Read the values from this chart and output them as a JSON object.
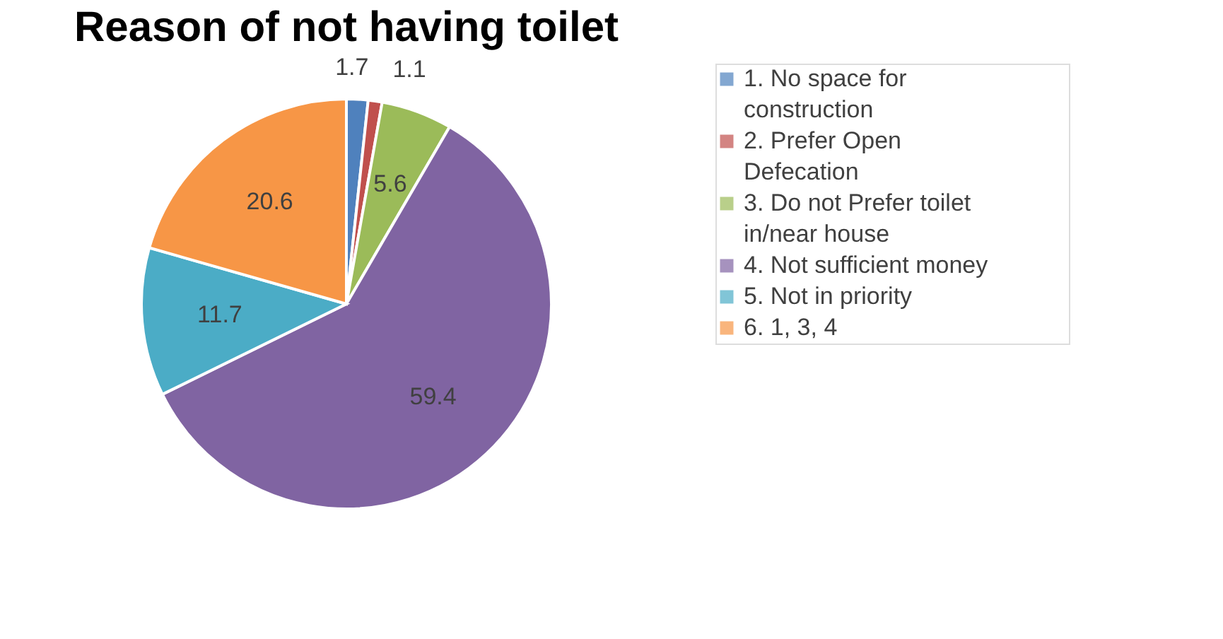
{
  "chart_data": {
    "type": "pie",
    "title": "Reason of not having toilet",
    "categories": [
      "1. No space for construction",
      "2. Prefer Open Defecation",
      "3. Do not Prefer toilet in/near house",
      "4. Not sufficient money",
      "5. Not in priority",
      "6. 1, 3, 4"
    ],
    "values": [
      1.7,
      1.1,
      5.6,
      59.4,
      11.7,
      20.6
    ],
    "colors": [
      "#4f81bd",
      "#c0504d",
      "#9bbb59",
      "#8064a2",
      "#4bacc6",
      "#f79646"
    ],
    "data_labels": true,
    "legend": "right"
  }
}
